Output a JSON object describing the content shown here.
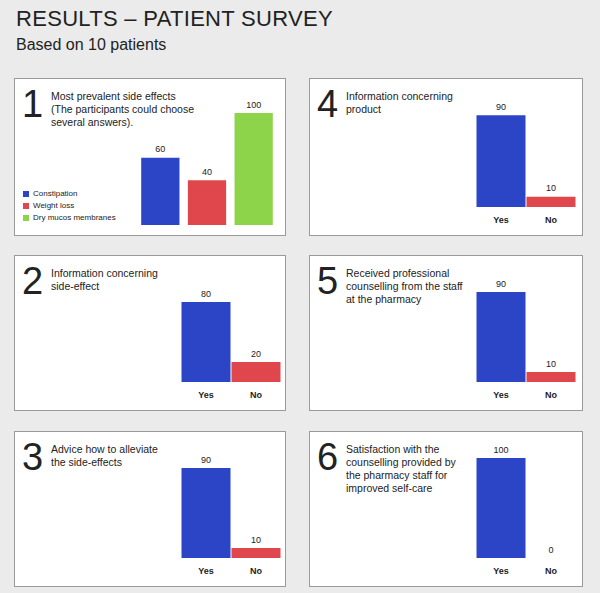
{
  "title": "RESULTS – PATIENT SURVEY",
  "subtitle": "Based on 10 patients",
  "chart_data": [
    {
      "type": "bar",
      "number": 1,
      "title": "Most prevalent side effects",
      "subtitle": "(The participants could choose several answers).",
      "categories": [
        "Constipation",
        "Weight loss",
        "Dry mucos membranes"
      ],
      "values": [
        60,
        40,
        100
      ],
      "colors": [
        "#2b45c6",
        "#e0474c",
        "#8ed44a"
      ],
      "ylim": [
        0,
        100
      ],
      "yticks": [
        0,
        100
      ],
      "grid": false,
      "legend": "left",
      "data_labels": true,
      "tick_labels": false
    },
    {
      "type": "bar",
      "number": 2,
      "title": "Information concerning side-effect",
      "categories": [
        "Yes",
        "No"
      ],
      "values": [
        80,
        20
      ],
      "colors": [
        "#2b45c6",
        "#e0474c"
      ],
      "ylim": [
        0,
        100
      ],
      "yticks": [
        0,
        100
      ],
      "grid": false,
      "data_labels": true,
      "tick_labels": "x"
    },
    {
      "type": "bar",
      "number": 3,
      "title": "Advice how to alleviate the side-effects",
      "categories": [
        "Yes",
        "No"
      ],
      "values": [
        90,
        10
      ],
      "colors": [
        "#2b45c6",
        "#e0474c"
      ],
      "ylim": [
        0,
        100
      ],
      "yticks": [
        0,
        100
      ],
      "grid": false,
      "data_labels": true,
      "tick_labels": "x"
    },
    {
      "type": "bar",
      "number": 4,
      "title": "Information concerning product",
      "categories": [
        "Yes",
        "No"
      ],
      "values": [
        90,
        10
      ],
      "colors": [
        "#2b45c6",
        "#e0474c"
      ],
      "ylim": [
        0,
        100
      ],
      "yticks": [
        0,
        100
      ],
      "grid": false,
      "data_labels": true,
      "tick_labels": "x"
    },
    {
      "type": "bar",
      "number": 5,
      "title": "Received professional counselling from the staff at the pharmacy",
      "categories": [
        "Yes",
        "No"
      ],
      "values": [
        90,
        10
      ],
      "colors": [
        "#2b45c6",
        "#e0474c"
      ],
      "ylim": [
        0,
        100
      ],
      "yticks": [
        0,
        100
      ],
      "grid": false,
      "data_labels": true,
      "tick_labels": "x"
    },
    {
      "type": "bar",
      "number": 6,
      "title": "Satisfaction with the counselling provided by the pharmacy staff for improved self-care",
      "categories": [
        "Yes",
        "No"
      ],
      "values": [
        100,
        0
      ],
      "colors": [
        "#2b45c6",
        "#e0474c"
      ],
      "ylim": [
        0,
        100
      ],
      "yticks": [
        0,
        100
      ],
      "grid": false,
      "data_labels": true,
      "tick_labels": "x"
    }
  ]
}
